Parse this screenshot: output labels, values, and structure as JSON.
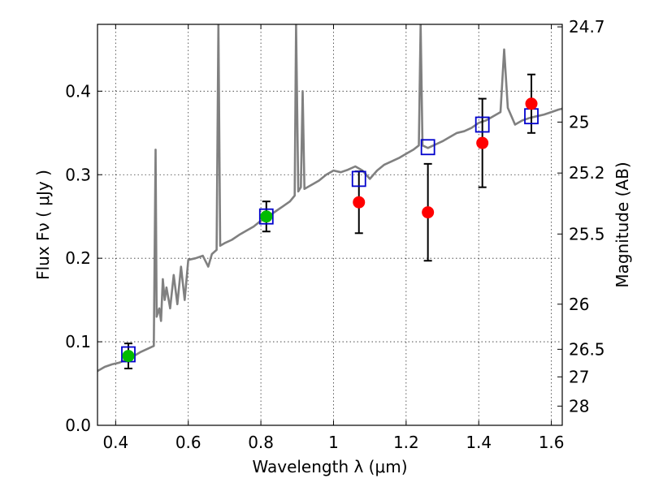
{
  "chart_data": {
    "type": "scatter",
    "xlabel": "Wavelength  λ (μm)",
    "ylabel": "Flux  Fν  ( μJy )",
    "ylabel_right": "Magnitude (AB)",
    "xlim": [
      0.35,
      1.63
    ],
    "ylim": [
      0.0,
      0.48
    ],
    "grid": true,
    "x_ticks": [
      0.4,
      0.6,
      0.8,
      1.0,
      1.2,
      1.4,
      1.6
    ],
    "x_tick_labels": [
      "0.4",
      "0.6",
      "0.8",
      "1",
      "1.2",
      "1.4",
      "1.6"
    ],
    "y_ticks": [
      0.0,
      0.1,
      0.2,
      0.3,
      0.4
    ],
    "y_tick_labels": [
      "0.0",
      "0.1",
      "0.2",
      "0.3",
      "0.4"
    ],
    "right_ticks": [
      {
        "label": "24.7",
        "flux": 0.477
      },
      {
        "label": "25",
        "flux": 0.363
      },
      {
        "label": "25.2",
        "flux": 0.302
      },
      {
        "label": "25.5",
        "flux": 0.229
      },
      {
        "label": "26",
        "flux": 0.145
      },
      {
        "label": "26.5",
        "flux": 0.091
      },
      {
        "label": "27",
        "flux": 0.058
      },
      {
        "label": "28",
        "flux": 0.023
      }
    ],
    "colors": {
      "spectrum": "#808080",
      "model": "#0000cc",
      "observed_red": "#ff0000",
      "observed_green": "#00bb00",
      "errorbar": "#000000"
    },
    "series": [
      {
        "kind": "spectrum",
        "points": [
          [
            0.35,
            0.065
          ],
          [
            0.37,
            0.07
          ],
          [
            0.39,
            0.073
          ],
          [
            0.41,
            0.075
          ],
          [
            0.43,
            0.079
          ],
          [
            0.45,
            0.083
          ],
          [
            0.47,
            0.088
          ],
          [
            0.49,
            0.092
          ],
          [
            0.505,
            0.095
          ],
          [
            0.51,
            0.33
          ],
          [
            0.513,
            0.13
          ],
          [
            0.52,
            0.14
          ],
          [
            0.525,
            0.125
          ],
          [
            0.53,
            0.175
          ],
          [
            0.535,
            0.15
          ],
          [
            0.54,
            0.165
          ],
          [
            0.55,
            0.14
          ],
          [
            0.56,
            0.18
          ],
          [
            0.57,
            0.145
          ],
          [
            0.58,
            0.19
          ],
          [
            0.59,
            0.15
          ],
          [
            0.6,
            0.198
          ],
          [
            0.62,
            0.2
          ],
          [
            0.64,
            0.203
          ],
          [
            0.655,
            0.19
          ],
          [
            0.665,
            0.205
          ],
          [
            0.678,
            0.21
          ],
          [
            0.683,
            0.48
          ],
          [
            0.688,
            0.215
          ],
          [
            0.7,
            0.218
          ],
          [
            0.72,
            0.222
          ],
          [
            0.74,
            0.228
          ],
          [
            0.76,
            0.233
          ],
          [
            0.78,
            0.238
          ],
          [
            0.8,
            0.245
          ],
          [
            0.82,
            0.25
          ],
          [
            0.84,
            0.256
          ],
          [
            0.86,
            0.262
          ],
          [
            0.88,
            0.268
          ],
          [
            0.893,
            0.275
          ],
          [
            0.897,
            0.48
          ],
          [
            0.903,
            0.28
          ],
          [
            0.91,
            0.285
          ],
          [
            0.915,
            0.4
          ],
          [
            0.92,
            0.283
          ],
          [
            0.94,
            0.288
          ],
          [
            0.96,
            0.293
          ],
          [
            0.98,
            0.3
          ],
          [
            1.0,
            0.305
          ],
          [
            1.02,
            0.303
          ],
          [
            1.04,
            0.306
          ],
          [
            1.06,
            0.31
          ],
          [
            1.08,
            0.305
          ],
          [
            1.1,
            0.295
          ],
          [
            1.12,
            0.305
          ],
          [
            1.14,
            0.312
          ],
          [
            1.16,
            0.316
          ],
          [
            1.18,
            0.32
          ],
          [
            1.2,
            0.325
          ],
          [
            1.22,
            0.33
          ],
          [
            1.235,
            0.335
          ],
          [
            1.24,
            0.48
          ],
          [
            1.245,
            0.335
          ],
          [
            1.26,
            0.332
          ],
          [
            1.28,
            0.336
          ],
          [
            1.3,
            0.34
          ],
          [
            1.32,
            0.345
          ],
          [
            1.34,
            0.35
          ],
          [
            1.36,
            0.352
          ],
          [
            1.38,
            0.356
          ],
          [
            1.4,
            0.362
          ],
          [
            1.42,
            0.365
          ],
          [
            1.44,
            0.37
          ],
          [
            1.46,
            0.375
          ],
          [
            1.47,
            0.45
          ],
          [
            1.48,
            0.38
          ],
          [
            1.5,
            0.36
          ],
          [
            1.52,
            0.365
          ],
          [
            1.54,
            0.368
          ],
          [
            1.56,
            0.37
          ],
          [
            1.58,
            0.372
          ],
          [
            1.6,
            0.375
          ],
          [
            1.62,
            0.378
          ],
          [
            1.63,
            0.379
          ]
        ]
      },
      {
        "kind": "model",
        "points": [
          {
            "x": 0.435,
            "y": 0.085
          },
          {
            "x": 0.815,
            "y": 0.25
          },
          {
            "x": 1.07,
            "y": 0.295
          },
          {
            "x": 1.26,
            "y": 0.333
          },
          {
            "x": 1.41,
            "y": 0.36
          },
          {
            "x": 1.545,
            "y": 0.37
          }
        ]
      },
      {
        "kind": "observed",
        "points": [
          {
            "x": 0.435,
            "y": 0.083,
            "err": 0.015,
            "color": "green"
          },
          {
            "x": 0.815,
            "y": 0.25,
            "err": 0.018,
            "color": "green"
          },
          {
            "x": 1.07,
            "y": 0.267,
            "err": 0.037,
            "color": "red"
          },
          {
            "x": 1.26,
            "y": 0.255,
            "err": 0.058,
            "color": "red"
          },
          {
            "x": 1.41,
            "y": 0.338,
            "err": 0.053,
            "color": "red"
          },
          {
            "x": 1.545,
            "y": 0.385,
            "err": 0.035,
            "color": "red"
          }
        ]
      }
    ]
  }
}
